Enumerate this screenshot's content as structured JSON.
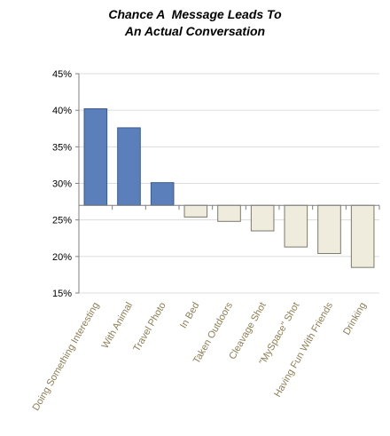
{
  "chart_data": {
    "type": "bar",
    "title_line1": "Chance A  Message Leads To",
    "title_line2": "An Actual Conversation",
    "xlabel": "",
    "ylabel": "",
    "baseline": 27,
    "ylim": [
      15,
      45
    ],
    "yticks": [
      15,
      20,
      25,
      30,
      35,
      40,
      45
    ],
    "ytick_labels": [
      "15%",
      "20%",
      "25%",
      "30%",
      "35%",
      "40%",
      "45%"
    ],
    "grid": true,
    "categories": [
      "Doing Something Interesting",
      "With Animal",
      "Travel Photo",
      "In Bed",
      "Taken Outdoors",
      "Cleavage Shot",
      "\"MySpace\" Shot",
      "Having Fun With Friends",
      "Drinking"
    ],
    "values": [
      40.2,
      37.6,
      30.1,
      25.4,
      24.8,
      23.5,
      21.3,
      20.4,
      18.5
    ],
    "colors": {
      "above": "#5a7fbb",
      "above_border": "#3c5a8a",
      "below": "#efebdd",
      "below_border": "#7a7a6a",
      "tick_label": "#8c7e55",
      "grid": "#dcdcdc"
    }
  }
}
